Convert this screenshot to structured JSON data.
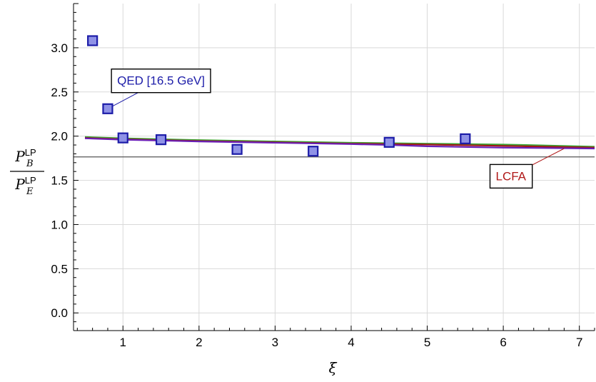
{
  "chart_data": {
    "type": "scatter",
    "title": "",
    "xlabel": "ξ",
    "ylabel": {
      "numerator": {
        "base": "P",
        "sub": "B",
        "sup": "LP"
      },
      "denominator": {
        "base": "P",
        "sub": "E",
        "sup": "LP"
      }
    },
    "xlim": [
      0.35,
      7.2
    ],
    "ylim": [
      -0.2,
      3.5
    ],
    "xticks": [
      1,
      2,
      3,
      4,
      5,
      6,
      7
    ],
    "yticks": [
      0.0,
      0.5,
      1.0,
      1.5,
      2.0,
      2.5,
      3.0
    ],
    "ytick_labels": [
      "0.0",
      "0.5",
      "1.0",
      "1.5",
      "2.0",
      "2.5",
      "3.0"
    ],
    "grid": true,
    "reference_line": {
      "y": 1.765,
      "color": "#555555"
    },
    "points": {
      "name": "QED [16.5 GeV]",
      "x": [
        0.6,
        0.8,
        1.0,
        1.5,
        2.5,
        3.5,
        4.5,
        5.5
      ],
      "y": [
        3.08,
        2.31,
        1.98,
        1.96,
        1.85,
        1.83,
        1.93,
        1.97
      ],
      "fill": "#8f92e6",
      "stroke": "#1c1ca8"
    },
    "curves": [
      {
        "x": [
          0.5,
          1,
          2,
          3,
          4,
          5,
          6,
          6.3,
          7.2
        ],
        "y": [
          1.99,
          1.975,
          1.955,
          1.94,
          1.925,
          1.915,
          1.905,
          1.9,
          1.88
        ],
        "color": "#3aa535"
      },
      {
        "x": [
          0.5,
          1,
          2,
          3,
          4,
          5,
          6,
          6.3,
          7.2
        ],
        "y": [
          1.98,
          1.965,
          1.945,
          1.93,
          1.915,
          1.905,
          1.89,
          1.885,
          1.87
        ],
        "color": "#a01818"
      },
      {
        "x": [
          0.5,
          1,
          2,
          3,
          4,
          4.5,
          5,
          6,
          7.2
        ],
        "y": [
          1.975,
          1.96,
          1.94,
          1.925,
          1.91,
          1.9,
          1.885,
          1.87,
          1.86
        ],
        "color": "#6a1fb5"
      }
    ],
    "annotations": [
      {
        "text": "QED [16.5 GeV]",
        "color": "#1c1ca8",
        "target_x": 0.8,
        "target_y": 2.31,
        "label_x": 1.5,
        "label_y": 2.63
      },
      {
        "text": "LCFA",
        "color": "#b01818",
        "target_x": 6.8,
        "target_y": 1.86,
        "label_x": 6.1,
        "label_y": 1.55
      }
    ]
  }
}
